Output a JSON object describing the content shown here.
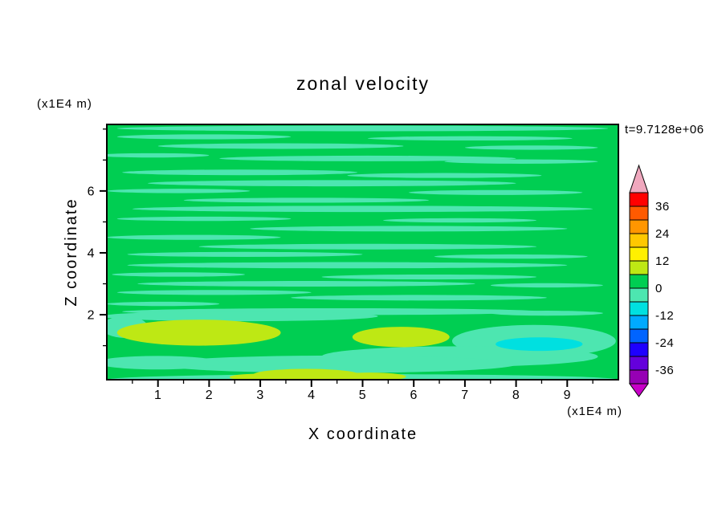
{
  "chart_data": {
    "type": "contour",
    "title": "zonal velocity",
    "xlabel": "X coordinate",
    "ylabel": "Z coordinate",
    "x_unit_label": "(x1E4 m)",
    "y_unit_label": "(x1E4 m)",
    "time_annotation": "t=9.7128e+06",
    "time_color": "#ff3200",
    "grid": "off",
    "legend": "colorbar-right",
    "xlim": [
      0,
      10
    ],
    "ylim": [
      -0.1,
      8.15
    ],
    "x_ticks": [
      "1",
      "2",
      "3",
      "4",
      "5",
      "6",
      "7",
      "8",
      "9"
    ],
    "x_tick_values": [
      1,
      2,
      3,
      4,
      5,
      6,
      7,
      8,
      9
    ],
    "x_minor_ticks": [
      0.5,
      1.5,
      2.5,
      3.5,
      4.5,
      5.5,
      6.5,
      7.5,
      8.5,
      9.5
    ],
    "y_ticks": [
      "2",
      "4",
      "6"
    ],
    "y_tick_values": [
      2,
      4,
      6
    ],
    "y_minor_ticks": [
      1,
      3,
      5,
      7,
      8
    ],
    "colorbar": {
      "tick_labels": [
        "36",
        "24",
        "12",
        "0",
        "-12",
        "-24",
        "-36"
      ],
      "level_min": -42,
      "level_max": 42,
      "level_step": 6,
      "colors_top_to_bottom": [
        "#FF0000",
        "#FF5A00",
        "#FF9600",
        "#FFC800",
        "#FFF000",
        "#BEE814",
        "#00CE52",
        "#4DE6B0",
        "#00E0E0",
        "#00AAFF",
        "#0064FF",
        "#1E00FF",
        "#6400DC",
        "#9600B4"
      ],
      "arrow_top_color": "#F0A8BE",
      "arrow_bottom_color": "#C800C8"
    },
    "field": {
      "description": "mostly near-zero zonal velocity: background in 0..6 band, pale horizontal streaks in -6..0 band, yellow-green patches (6..12) near z=1-2, cyan accent near lower right",
      "palette": {
        "background": "#00CE52",
        "seafoam": "#4DE6B0",
        "yellow_green": "#BEE814",
        "cyan": "#00E0E0"
      },
      "features": [
        {
          "color": "seafoam",
          "cx": 5.0,
          "cy": 8.02,
          "rx": 4.8,
          "ry": 0.09
        },
        {
          "color": "seafoam",
          "cx": 1.9,
          "cy": 7.75,
          "rx": 1.7,
          "ry": 0.08
        },
        {
          "color": "seafoam",
          "cx": 7.1,
          "cy": 7.7,
          "rx": 2.0,
          "ry": 0.07
        },
        {
          "color": "seafoam",
          "cx": 3.4,
          "cy": 7.45,
          "rx": 2.4,
          "ry": 0.09
        },
        {
          "color": "seafoam",
          "cx": 8.3,
          "cy": 7.4,
          "rx": 1.3,
          "ry": 0.07
        },
        {
          "color": "seafoam",
          "cx": 0.9,
          "cy": 7.15,
          "rx": 1.1,
          "ry": 0.07
        },
        {
          "color": "seafoam",
          "cx": 5.1,
          "cy": 7.05,
          "rx": 2.9,
          "ry": 0.09
        },
        {
          "color": "seafoam",
          "cx": 8.1,
          "cy": 6.95,
          "rx": 1.5,
          "ry": 0.07
        },
        {
          "color": "seafoam",
          "cx": 2.6,
          "cy": 6.6,
          "rx": 2.3,
          "ry": 0.09
        },
        {
          "color": "seafoam",
          "cx": 6.6,
          "cy": 6.5,
          "rx": 1.9,
          "ry": 0.08
        },
        {
          "color": "seafoam",
          "cx": 4.4,
          "cy": 6.25,
          "rx": 3.6,
          "ry": 0.1
        },
        {
          "color": "seafoam",
          "cx": 1.4,
          "cy": 6.0,
          "rx": 1.4,
          "ry": 0.07
        },
        {
          "color": "seafoam",
          "cx": 7.6,
          "cy": 5.95,
          "rx": 1.7,
          "ry": 0.08
        },
        {
          "color": "seafoam",
          "cx": 3.9,
          "cy": 5.7,
          "rx": 2.4,
          "ry": 0.08
        },
        {
          "color": "seafoam",
          "cx": 5.0,
          "cy": 5.42,
          "rx": 4.5,
          "ry": 0.1
        },
        {
          "color": "seafoam",
          "cx": 1.9,
          "cy": 5.1,
          "rx": 1.7,
          "ry": 0.07
        },
        {
          "color": "seafoam",
          "cx": 6.9,
          "cy": 5.05,
          "rx": 1.5,
          "ry": 0.07
        },
        {
          "color": "seafoam",
          "cx": 5.9,
          "cy": 4.78,
          "rx": 3.1,
          "ry": 0.09
        },
        {
          "color": "seafoam",
          "cx": 1.7,
          "cy": 4.5,
          "rx": 1.7,
          "ry": 0.08
        },
        {
          "color": "seafoam",
          "cx": 5.1,
          "cy": 4.2,
          "rx": 3.3,
          "ry": 0.09
        },
        {
          "color": "seafoam",
          "cx": 2.7,
          "cy": 3.95,
          "rx": 2.3,
          "ry": 0.08
        },
        {
          "color": "seafoam",
          "cx": 7.9,
          "cy": 3.88,
          "rx": 1.5,
          "ry": 0.07
        },
        {
          "color": "seafoam",
          "cx": 4.7,
          "cy": 3.6,
          "rx": 4.3,
          "ry": 0.1
        },
        {
          "color": "seafoam",
          "cx": 1.4,
          "cy": 3.3,
          "rx": 1.3,
          "ry": 0.07
        },
        {
          "color": "seafoam",
          "cx": 6.3,
          "cy": 3.22,
          "rx": 2.1,
          "ry": 0.08
        },
        {
          "color": "seafoam",
          "cx": 3.9,
          "cy": 3.0,
          "rx": 3.3,
          "ry": 0.09
        },
        {
          "color": "seafoam",
          "cx": 8.6,
          "cy": 2.95,
          "rx": 1.1,
          "ry": 0.07
        },
        {
          "color": "seafoam",
          "cx": 2.1,
          "cy": 2.72,
          "rx": 1.9,
          "ry": 0.08
        },
        {
          "color": "seafoam",
          "cx": 6.1,
          "cy": 2.55,
          "rx": 2.5,
          "ry": 0.09
        },
        {
          "color": "seafoam",
          "cx": 1.1,
          "cy": 2.35,
          "rx": 1.1,
          "ry": 0.07
        },
        {
          "color": "seafoam",
          "cx": 4.4,
          "cy": 2.1,
          "rx": 4.1,
          "ry": 0.11
        },
        {
          "color": "seafoam",
          "cx": 8.6,
          "cy": 2.05,
          "rx": 1.1,
          "ry": 0.08
        },
        {
          "color": "seafoam",
          "cx": 2.6,
          "cy": 1.95,
          "rx": 2.7,
          "ry": 0.16
        },
        {
          "color": "seafoam",
          "cx": 8.35,
          "cy": 1.15,
          "rx": 1.6,
          "ry": 0.52
        },
        {
          "color": "seafoam",
          "cx": 6.9,
          "cy": 0.65,
          "rx": 2.7,
          "ry": 0.33
        },
        {
          "color": "seafoam",
          "cx": 4.5,
          "cy": 0.4,
          "rx": 3.5,
          "ry": 0.28
        },
        {
          "color": "seafoam",
          "cx": 1.0,
          "cy": 0.45,
          "rx": 1.2,
          "ry": 0.22
        },
        {
          "color": "seafoam",
          "cx": 0.35,
          "cy": 1.6,
          "rx": 0.45,
          "ry": 0.35
        },
        {
          "color": "seafoam",
          "cx": 5.0,
          "cy": -0.1,
          "rx": 5.0,
          "ry": 0.18
        },
        {
          "color": "cyan",
          "cx": 8.45,
          "cy": 1.05,
          "rx": 0.85,
          "ry": 0.22
        },
        {
          "color": "yellow_green",
          "cx": 1.8,
          "cy": 1.42,
          "rx": 1.6,
          "ry": 0.42
        },
        {
          "color": "yellow_green",
          "cx": 5.75,
          "cy": 1.28,
          "rx": 0.95,
          "ry": 0.33
        },
        {
          "color": "yellow_green",
          "cx": 3.9,
          "cy": 0.05,
          "rx": 1.05,
          "ry": 0.2
        },
        {
          "color": "yellow_green",
          "cx": 5.15,
          "cy": 0.0,
          "rx": 0.7,
          "ry": 0.13
        },
        {
          "color": "yellow_green",
          "cx": 2.95,
          "cy": -0.02,
          "rx": 0.55,
          "ry": 0.11
        }
      ]
    }
  }
}
